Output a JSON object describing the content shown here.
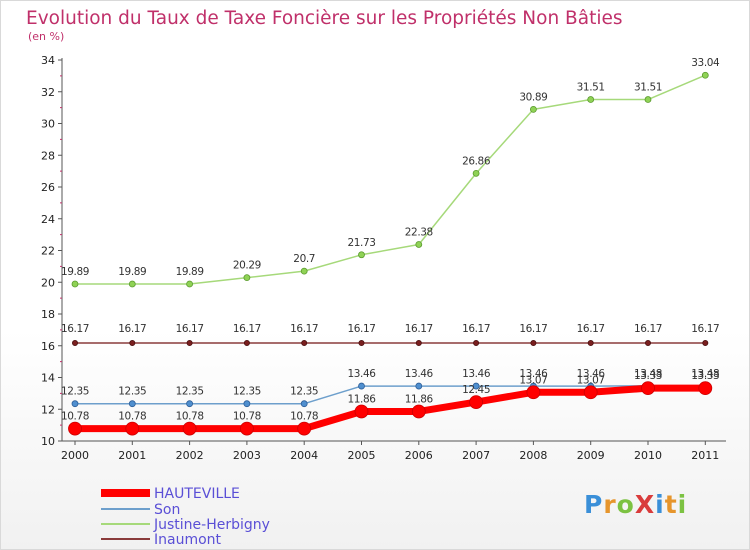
{
  "page": {
    "title": "Evolution du Taux de Taxe Foncière sur les Propriétés Non Bâties",
    "unit_label": "(en %)",
    "logo": {
      "text": "ProXiti",
      "colors": [
        "#3a8fd8",
        "#e6952c",
        "#7cc242",
        "#d93b3b",
        "#3a8fd8",
        "#e6952c",
        "#7cc242"
      ]
    }
  },
  "chart_data": {
    "type": "line",
    "title": "Evolution du Taux de Taxe Foncière sur les Propriétés Non Bâties",
    "ylabel": "(en %)",
    "xlabel": "",
    "x": [
      "2000",
      "2001",
      "2002",
      "2003",
      "2004",
      "2005",
      "2006",
      "2007",
      "2008",
      "2009",
      "2010",
      "2011"
    ],
    "ylim": [
      10,
      34
    ],
    "yticks": [
      "10",
      "12",
      "14",
      "16",
      "18",
      "20",
      "22",
      "24",
      "26",
      "28",
      "30",
      "32",
      "34"
    ],
    "grid": false,
    "legend_position": "bottom-left",
    "series": [
      {
        "name": "HAUTEVILLE",
        "color": "#ff0000",
        "values": [
          10.78,
          10.78,
          10.78,
          10.78,
          10.78,
          11.86,
          11.86,
          12.45,
          13.07,
          13.07,
          13.33,
          13.33
        ],
        "labels": [
          "10.78",
          "10.78",
          "10.78",
          "10.78",
          "10.78",
          "11.86",
          "11.86",
          "12.45",
          "13.07",
          "13.07",
          "13.33",
          "13.33"
        ]
      },
      {
        "name": "Son",
        "color": "#6d9fcc",
        "values": [
          12.35,
          12.35,
          12.35,
          12.35,
          12.35,
          13.46,
          13.46,
          13.46,
          13.46,
          13.46,
          13.48,
          13.48
        ],
        "labels": [
          "12.35",
          "12.35",
          "12.35",
          "12.35",
          "12.35",
          "13.46",
          "13.46",
          "13.46",
          "13.46",
          "13.46",
          "13.48",
          "13.48"
        ]
      },
      {
        "name": "Justine-Herbigny",
        "color": "#a6d97a",
        "values": [
          19.89,
          19.89,
          19.89,
          20.29,
          20.7,
          21.73,
          22.38,
          26.86,
          30.89,
          31.51,
          31.51,
          33.04
        ],
        "labels": [
          "19.89",
          "19.89",
          "19.89",
          "20.29",
          "20.7",
          "21.73",
          "22.38",
          "26.86",
          "30.89",
          "31.51",
          "31.51",
          "33.04"
        ]
      },
      {
        "name": "Inaumont",
        "color": "#8a3b3b",
        "values": [
          16.17,
          16.17,
          16.17,
          16.17,
          16.17,
          16.17,
          16.17,
          16.17,
          16.17,
          16.17,
          16.17,
          16.17
        ],
        "labels": [
          "16.17",
          "16.17",
          "16.17",
          "16.17",
          "16.17",
          "16.17",
          "16.17",
          "16.17",
          "16.17",
          "16.17",
          "16.17",
          "16.17"
        ]
      }
    ]
  }
}
